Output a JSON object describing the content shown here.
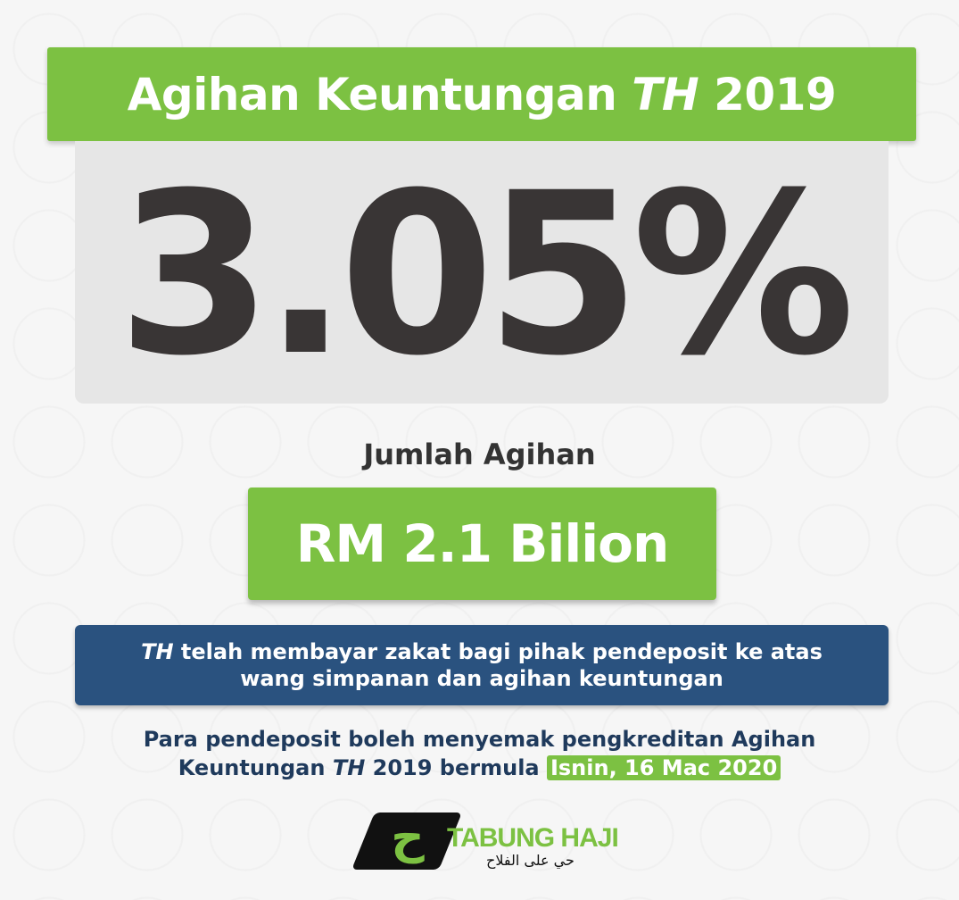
{
  "header": {
    "title_prefix": "Agihan Keuntungan ",
    "title_th": "TH",
    "title_year": " 2019"
  },
  "rate": {
    "value": "3.05%"
  },
  "total": {
    "label": "Jumlah Agihan",
    "amount": "RM 2.1 Bilion"
  },
  "note": {
    "th": "TH",
    "line1": " telah membayar zakat bagi pihak pendeposit ke atas",
    "line2": "wang simpanan dan agihan keuntungan"
  },
  "info": {
    "line1": "Para pendeposit boleh menyemak pengkreditan Agihan",
    "line2_a": "Keuntungan ",
    "line2_th": "TH",
    "line2_b": " 2019 bermula ",
    "date": "Isnin, 16 Mac 2020"
  },
  "logo": {
    "name": "TABUNG HAJI",
    "tagline": "حي على الفلاح",
    "glyph": "ح"
  },
  "colors": {
    "green": "#7cc142",
    "blue": "#2a527f",
    "dark": "#393535",
    "navy": "#1f3a5c"
  }
}
